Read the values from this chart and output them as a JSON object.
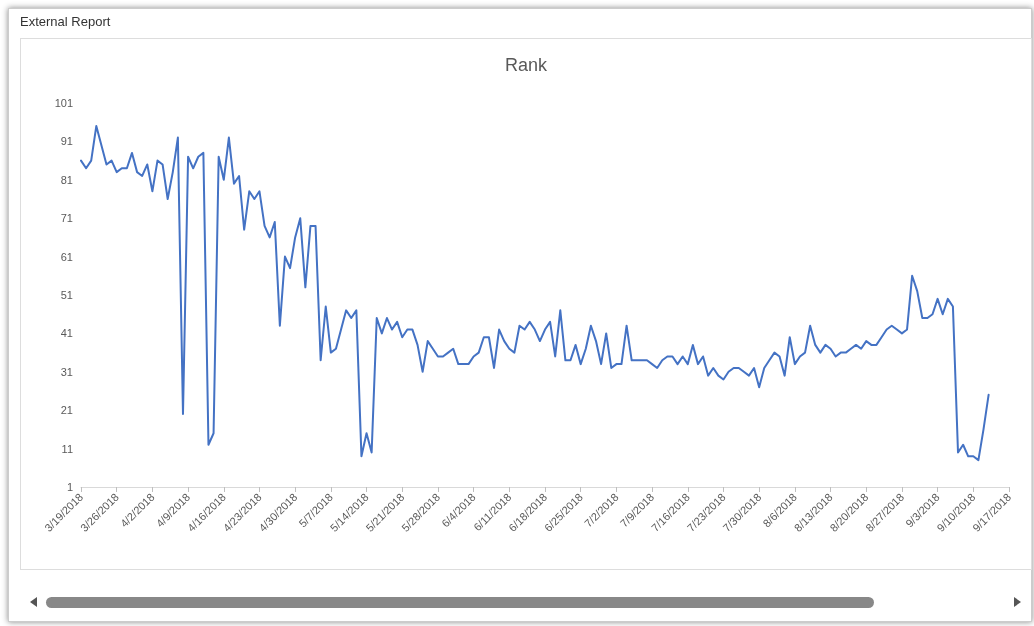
{
  "chart_data": {
    "type": "line",
    "title": "Rank",
    "annotations": [
      "External Report"
    ],
    "categories": [
      "3/19/2018",
      null,
      null,
      null,
      null,
      null,
      null,
      "3/26/2018",
      null,
      null,
      null,
      null,
      null,
      null,
      "4/2/2018",
      null,
      null,
      null,
      null,
      null,
      null,
      "4/9/2018",
      null,
      null,
      null,
      null,
      null,
      null,
      "4/16/2018",
      null,
      null,
      null,
      null,
      null,
      null,
      "4/23/2018",
      null,
      null,
      null,
      null,
      null,
      null,
      "4/30/2018",
      null,
      null,
      null,
      null,
      null,
      null,
      "5/7/2018",
      null,
      null,
      null,
      null,
      null,
      null,
      "5/14/2018",
      null,
      null,
      null,
      null,
      null,
      null,
      "5/21/2018",
      null,
      null,
      null,
      null,
      null,
      null,
      "5/28/2018",
      null,
      null,
      null,
      null,
      null,
      null,
      "6/4/2018",
      null,
      null,
      null,
      null,
      null,
      null,
      "6/11/2018",
      null,
      null,
      null,
      null,
      null,
      null,
      "6/18/2018",
      null,
      null,
      null,
      null,
      null,
      null,
      "6/25/2018",
      null,
      null,
      null,
      null,
      null,
      null,
      "7/2/2018",
      null,
      null,
      null,
      null,
      null,
      null,
      "7/9/2018",
      null,
      null,
      null,
      null,
      null,
      null,
      "7/16/2018",
      null,
      null,
      null,
      null,
      null,
      null,
      "7/23/2018",
      null,
      null,
      null,
      null,
      null,
      null,
      "7/30/2018",
      null,
      null,
      null,
      null,
      null,
      null,
      "8/6/2018",
      null,
      null,
      null,
      null,
      null,
      null,
      "8/13/2018",
      null,
      null,
      null,
      null,
      null,
      null,
      "8/20/2018",
      null,
      null,
      null,
      null,
      null,
      null,
      "8/27/2018",
      null,
      null,
      null,
      null,
      null,
      null,
      "9/3/2018",
      null,
      null,
      null,
      null,
      null,
      null,
      "9/10/2018",
      null,
      null,
      null,
      null,
      null,
      null,
      "9/17/2018"
    ],
    "series": [
      {
        "color": "#4472c4",
        "values": [
          86,
          84,
          86,
          95,
          90,
          85,
          86,
          83,
          84,
          84,
          88,
          83,
          82,
          85,
          78,
          86,
          85,
          76,
          83,
          92,
          20,
          87,
          84,
          87,
          88,
          12,
          15,
          87,
          81,
          92,
          80,
          82,
          68,
          78,
          76,
          78,
          69,
          66,
          70,
          43,
          61,
          58,
          66,
          71,
          53,
          69,
          69,
          34,
          48,
          36,
          37,
          42,
          47,
          45,
          47,
          9,
          15,
          10,
          45,
          41,
          45,
          42,
          44,
          40,
          42,
          42,
          38,
          31,
          39,
          37,
          35,
          35,
          36,
          37,
          33,
          33,
          33,
          35,
          36,
          40,
          40,
          32,
          42,
          39,
          37,
          36,
          43,
          42,
          44,
          42,
          39,
          42,
          44,
          35,
          47,
          34,
          34,
          38,
          33,
          37,
          43,
          39,
          33,
          41,
          32,
          33,
          33,
          43,
          34,
          34,
          34,
          34,
          33,
          32,
          34,
          35,
          35,
          33,
          35,
          33,
          38,
          33,
          35,
          30,
          32,
          30,
          29,
          31,
          32,
          32,
          31,
          30,
          32,
          27,
          32,
          34,
          36,
          35,
          30,
          40,
          33,
          35,
          36,
          43,
          38,
          36,
          38,
          37,
          35,
          36,
          36,
          37,
          38,
          37,
          39,
          38,
          38,
          40,
          42,
          43,
          42,
          41,
          42,
          56,
          52,
          45,
          45,
          46,
          50,
          46,
          50,
          48,
          10,
          12,
          9,
          9,
          8,
          16,
          25,
          null,
          null,
          null,
          null
        ]
      }
    ],
    "ylim": [
      1,
      101
    ],
    "yticks": [
      1,
      11,
      21,
      31,
      41,
      51,
      61,
      71,
      81,
      91,
      101
    ],
    "marker": "none",
    "line_style": "solid"
  }
}
